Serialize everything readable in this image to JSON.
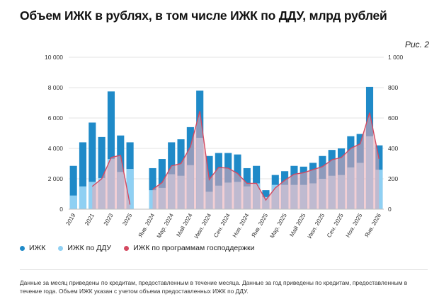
{
  "title": "Объем ИЖК в рублях, в том числе ИЖК по ДДУ, млрд рублей",
  "figure_label": "Рис. 2",
  "legend": {
    "izhk": "ИЖК",
    "izhk_ddu": "ИЖК по ДДУ",
    "izhk_gov": "ИЖК по программам господдержки"
  },
  "note": "Данные за месяц приведены по кредитам, предоставленным в течение месяца. Данные за год приведены по кредитам, предоставленным в течение года. Объем ИЖК указан с учетом объема предоставленных ИЖК по ДДУ.",
  "colors": {
    "izhk": "#1f8ac8",
    "izhk_ddu": "#8fd0f3",
    "izhk_gov_fill": "#e8a7b2",
    "izhk_gov_line": "#d44a61",
    "grid": "#e3e3e3"
  },
  "chart_data": {
    "type": "bar",
    "left_axis": {
      "ylim": [
        0,
        10000
      ],
      "ticks": [
        "0",
        "2 000",
        "4 000",
        "6 000",
        "8 000",
        "10 000"
      ]
    },
    "right_axis": {
      "ylim": [
        0,
        1000
      ],
      "ticks": [
        "0",
        "200",
        "400",
        "600",
        "800",
        "1 000"
      ]
    },
    "x_tick_labels": [
      "2019",
      "2021",
      "2023",
      "2025",
      "Янв. 2024",
      "Мар. 2024",
      "Май 2024",
      "Июл. 2024",
      "Сен. 2024",
      "Ноя. 2024",
      "Янв. 2025",
      "Мар. 2025",
      "Май 2025",
      "Июл. 2025",
      "Сен. 2025",
      "Ноя. 2025",
      "Янв. 2026"
    ],
    "groups": [
      {
        "kind": "annual",
        "categories": [
          "2019",
          "2020",
          "2021",
          "2022",
          "2023",
          "2024",
          "2025"
        ],
        "izhk": [
          2850,
          4400,
          5700,
          4750,
          7750,
          4850,
          4400
        ],
        "izhk_ddu": [
          900,
          1500,
          1800,
          2050,
          3300,
          2450,
          2650
        ],
        "izhk_gov": [
          null,
          null,
          1500,
          2000,
          3400,
          3550,
          300
        ]
      },
      {
        "kind": "monthly",
        "categories": [
          "Янв. 2024",
          "Фев. 2024",
          "Мар. 2024",
          "Апр. 2024",
          "Май 2024",
          "Июн. 2024",
          "Июл. 2024",
          "Авг. 2024",
          "Сен. 2024",
          "Окт. 2024",
          "Ноя. 2024",
          "Дек. 2024",
          "Янв. 2025",
          "Фев. 2025",
          "Мар. 2025",
          "Апр. 2025",
          "Май 2025",
          "Июн. 2025",
          "Июл. 2025",
          "Авг. 2025",
          "Сен. 2025",
          "Окт. 2025",
          "Ноя. 2025",
          "Дек. 2025",
          "Янв. 2026"
        ],
        "izhk": [
          2700,
          3300,
          4400,
          4600,
          5400,
          7800,
          3500,
          3700,
          3700,
          3600,
          2700,
          2850,
          1250,
          2250,
          2500,
          2850,
          2800,
          3050,
          3500,
          3900,
          4000,
          4800,
          4950,
          8050,
          4200
        ],
        "izhk_ddu": [
          1250,
          1400,
          2300,
          2200,
          2900,
          4700,
          1150,
          1550,
          1750,
          1800,
          1500,
          1700,
          800,
          1600,
          1600,
          1600,
          1600,
          1700,
          2000,
          2200,
          2250,
          2750,
          3050,
          4800,
          2600
        ],
        "izhk_gov": [
          1300,
          1750,
          2850,
          3000,
          4100,
          6450,
          1950,
          2750,
          2700,
          2350,
          1700,
          1700,
          600,
          1400,
          1900,
          2300,
          2400,
          2600,
          2800,
          3250,
          3400,
          4000,
          4300,
          6350,
          3300
        ]
      }
    ]
  }
}
